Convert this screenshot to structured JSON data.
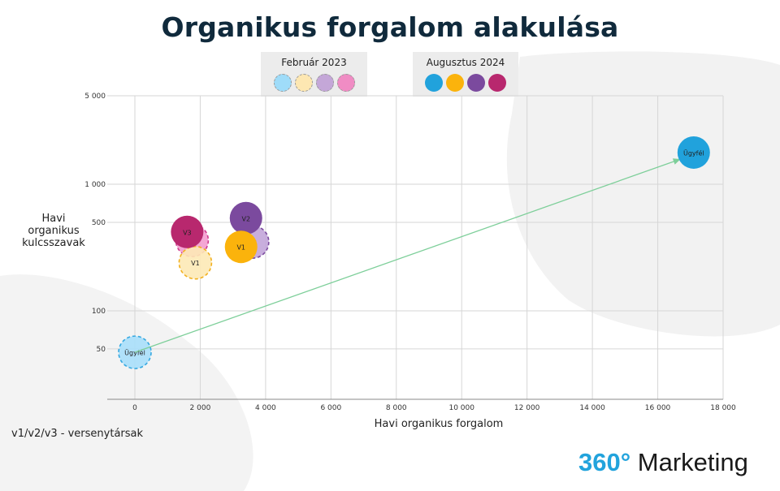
{
  "chart_data": {
    "type": "scatter",
    "title": "Organikus forgalom alakulása",
    "xlabel": "Havi organikus forgalom",
    "ylabel": "Havi organikus kulcsszavak",
    "x_ticks": [
      "0",
      "2 000",
      "4 000",
      "6 000",
      "8 000",
      "10 000",
      "12 000",
      "14 000",
      "16 000",
      "18 000"
    ],
    "y_ticks": [
      "5 000",
      "1 000",
      "500",
      "100",
      "50"
    ],
    "xlim": [
      0,
      18000
    ],
    "ylim": [
      20,
      5000
    ],
    "y_scale": "log",
    "grid": true,
    "legend_position": "top",
    "groups": [
      {
        "name": "Február 2023",
        "style": "dashed",
        "colors": [
          "#9fdcf9",
          "#fde7b2",
          "#c4a7d8",
          "#f08cc4"
        ]
      },
      {
        "name": "Augusztus 2024",
        "style": "solid",
        "colors": [
          "#21a2dc",
          "#fbb30c",
          "#7b4a9e",
          "#b8286e"
        ]
      }
    ],
    "points": [
      {
        "label": "Ügyfél",
        "group": "Február 2023",
        "x": 0,
        "y": 47,
        "fill": "#a9dffb",
        "stroke": "#35a8e0",
        "dashed": true
      },
      {
        "label": "V2",
        "group": "Február 2023",
        "x": 3600,
        "y": 350,
        "fill": "#c2a5d9",
        "stroke": "#7b4a9e",
        "dashed": true
      },
      {
        "label": "V3",
        "group": "Február 2023",
        "x": 1750,
        "y": 360,
        "fill": "#f39ccf",
        "stroke": "#d03a8e",
        "dashed": true
      },
      {
        "label": "V1",
        "group": "Február 2023",
        "x": 1850,
        "y": 240,
        "fill": "#fde9b6",
        "stroke": "#f2b01e",
        "dashed": true
      },
      {
        "label": "V3",
        "group": "Augusztus 2024",
        "x": 1600,
        "y": 420,
        "fill": "#b8286e",
        "stroke": "#b8286e",
        "dashed": false
      },
      {
        "label": "V2",
        "group": "Augusztus 2024",
        "x": 3400,
        "y": 540,
        "fill": "#7b4a9e",
        "stroke": "#7b4a9e",
        "dashed": false
      },
      {
        "label": "V1",
        "group": "Augusztus 2024",
        "x": 3250,
        "y": 320,
        "fill": "#fbb30c",
        "stroke": "#fbb30c",
        "dashed": false
      },
      {
        "label": "Ügyfél",
        "group": "Augusztus 2024",
        "x": 17100,
        "y": 1780,
        "fill": "#21a2dc",
        "stroke": "#21a2dc",
        "dashed": false
      }
    ],
    "arrow": {
      "from": [
        0,
        47
      ],
      "to": [
        16700,
        1580
      ],
      "color": "#7ecf9a"
    }
  },
  "note": "v1/v2/v3 - versenytársak",
  "brand": {
    "number": "360°",
    "name": "Marketing"
  }
}
